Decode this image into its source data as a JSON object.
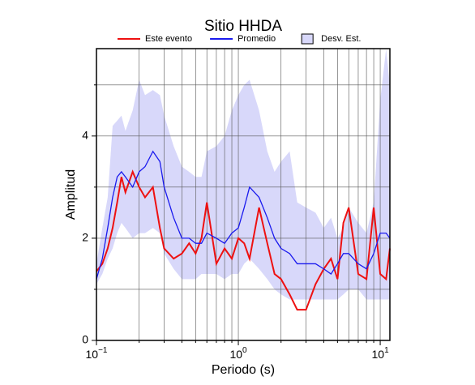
{
  "chart_data": {
    "type": "line",
    "title": "Sitio HHDA",
    "x_label": "Periodo (s)",
    "y_label": "Amplitud",
    "x_scale": "log",
    "xlim": [
      0.1,
      11.7
    ],
    "ylim": [
      0,
      5.71
    ],
    "xticks": [
      {
        "value": 0.1,
        "label": "10",
        "exponent": "−1"
      },
      {
        "value": 1,
        "label": "10",
        "exponent": "0"
      },
      {
        "value": 10,
        "label": "10",
        "exponent": "1"
      }
    ],
    "xminor": [
      0.2,
      0.3,
      0.4,
      0.5,
      0.6,
      0.7,
      0.8,
      0.9,
      2,
      3,
      4,
      5,
      6,
      7,
      8,
      9
    ],
    "yticks": [
      0,
      2,
      4
    ],
    "yminor": [
      1,
      3,
      5
    ],
    "grid": true,
    "legend": "top",
    "x": [
      0.1,
      0.11,
      0.12,
      0.13,
      0.14,
      0.15,
      0.16,
      0.18,
      0.2,
      0.22,
      0.25,
      0.28,
      0.3,
      0.35,
      0.4,
      0.45,
      0.5,
      0.55,
      0.6,
      0.7,
      0.8,
      0.9,
      1.0,
      1.1,
      1.2,
      1.4,
      1.6,
      1.8,
      2.0,
      2.3,
      2.6,
      3.0,
      3.5,
      4.0,
      4.5,
      5.0,
      5.5,
      6.0,
      7,
      8,
      9,
      10,
      11,
      11.7
    ],
    "series": [
      {
        "name": "Este evento",
        "color": "#ee1111",
        "values": [
          1.35,
          1.5,
          1.8,
          2.2,
          2.7,
          3.2,
          2.9,
          3.3,
          3.0,
          2.8,
          3.0,
          2.2,
          1.8,
          1.6,
          1.7,
          1.9,
          1.7,
          2.0,
          2.7,
          1.5,
          1.8,
          1.6,
          2.0,
          1.9,
          1.6,
          2.6,
          1.9,
          1.3,
          1.2,
          0.9,
          0.6,
          0.6,
          1.1,
          1.4,
          1.6,
          1.2,
          2.3,
          2.6,
          1.3,
          1.2,
          2.6,
          1.3,
          1.2,
          1.8
        ]
      },
      {
        "name": "Promedio",
        "color": "#1a1aee",
        "values": [
          1.2,
          1.6,
          2.2,
          2.8,
          3.2,
          3.3,
          3.2,
          3.0,
          3.3,
          3.4,
          3.7,
          3.5,
          3.0,
          2.4,
          2.0,
          2.0,
          1.9,
          1.9,
          2.1,
          2.0,
          1.9,
          2.1,
          2.2,
          2.6,
          3.0,
          2.8,
          2.4,
          2.0,
          1.8,
          1.7,
          1.5,
          1.5,
          1.5,
          1.4,
          1.3,
          1.5,
          1.7,
          1.7,
          1.5,
          1.4,
          1.7,
          2.1,
          2.1,
          2.0
        ]
      },
      {
        "name": "Desv. Est.",
        "color": "#d8d8fa",
        "upper": [
          1.5,
          2.2,
          2.8,
          4.2,
          4.3,
          4.4,
          4.1,
          4.5,
          5.1,
          4.8,
          4.9,
          4.8,
          4.4,
          3.8,
          3.4,
          3.3,
          3.2,
          3.2,
          3.7,
          3.8,
          4.0,
          4.5,
          4.8,
          5.0,
          5.1,
          4.5,
          3.7,
          3.3,
          3.5,
          3.7,
          2.7,
          2.6,
          2.5,
          2.2,
          2.4,
          2.0,
          2.2,
          2.6,
          2.3,
          2.1,
          2.7,
          4.7,
          5.7,
          5.0
        ],
        "lower": [
          1.1,
          1.3,
          1.6,
          1.8,
          2.1,
          2.3,
          2.2,
          2.0,
          2.1,
          2.1,
          2.2,
          2.1,
          1.7,
          1.4,
          1.2,
          1.2,
          1.2,
          1.3,
          1.3,
          1.3,
          1.2,
          1.3,
          1.3,
          1.5,
          1.6,
          1.4,
          1.2,
          1.0,
          0.9,
          0.8,
          0.8,
          0.8,
          0.8,
          0.8,
          0.8,
          0.8,
          0.9,
          1.0,
          1.0,
          0.8,
          0.8,
          0.8,
          0.8,
          0.8
        ]
      }
    ]
  }
}
